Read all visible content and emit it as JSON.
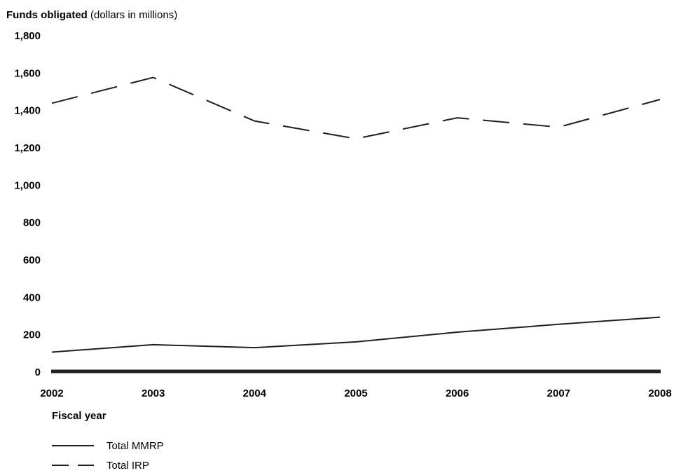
{
  "chart_data": {
    "type": "line",
    "ylabel_bold": "Funds obligated",
    "ylabel_rest": " (dollars in millions)",
    "xlabel": "Fiscal year",
    "x": [
      "2002",
      "2003",
      "2004",
      "2005",
      "2006",
      "2007",
      "2008"
    ],
    "y_ticks": [
      "0",
      "200",
      "400",
      "600",
      "800",
      "1,000",
      "1,200",
      "1,400",
      "1,600",
      "1,800"
    ],
    "y_tick_values": [
      0,
      200,
      400,
      600,
      800,
      1000,
      1200,
      1400,
      1600,
      1800
    ],
    "ylim": [
      0,
      1800
    ],
    "grid": false,
    "legend_position": "bottom-left",
    "series": [
      {
        "name": "Total MMRP",
        "style": "solid",
        "values": [
          103,
          143,
          127,
          158,
          210,
          252,
          290
        ]
      },
      {
        "name": "Total IRP",
        "style": "dashed",
        "values": [
          1435,
          1573,
          1340,
          1245,
          1357,
          1307,
          1455
        ]
      }
    ],
    "line_color": "#231f20"
  }
}
